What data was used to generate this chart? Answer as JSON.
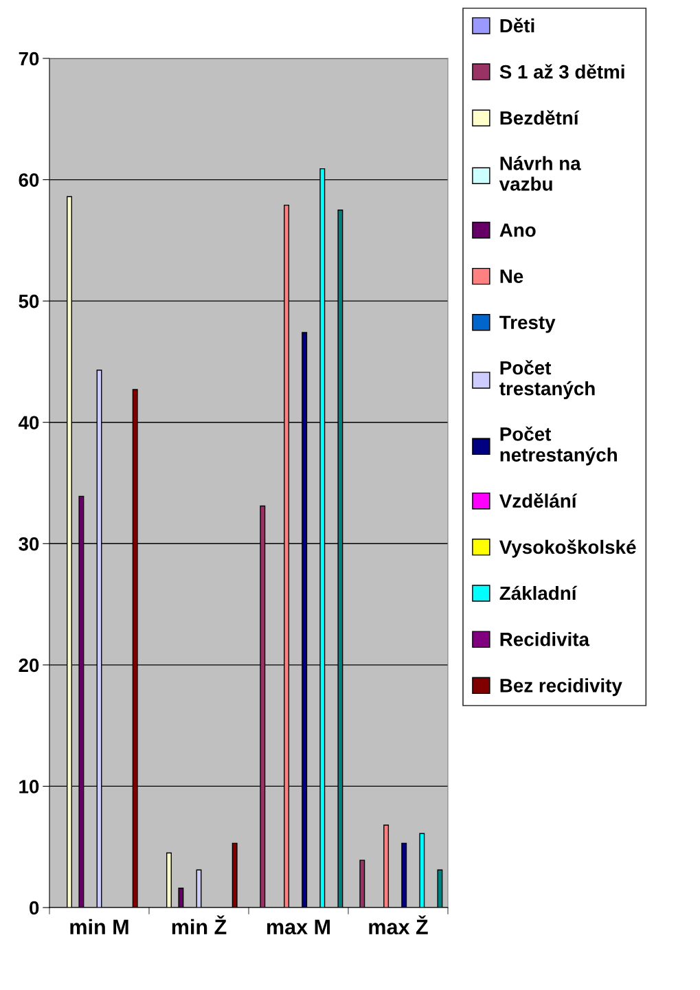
{
  "chart_data": {
    "type": "bar",
    "categories": [
      "min M",
      "min Ž",
      "max M",
      "max Ž"
    ],
    "series": [
      {
        "name": "Děti",
        "color": "#9999ff",
        "values": [
          null,
          null,
          null,
          null
        ]
      },
      {
        "name": "S 1 až 3 dětmi",
        "color": "#993366",
        "values": [
          null,
          null,
          33.1,
          3.9
        ]
      },
      {
        "name": "Bezdětní",
        "color": "#ffffcc",
        "values": [
          58.6,
          4.5,
          null,
          null
        ]
      },
      {
        "name": "Návrh na\nvazbu",
        "color": "#ccffff",
        "values": [
          null,
          null,
          null,
          null
        ]
      },
      {
        "name": "Ano",
        "color": "#660066",
        "values": [
          33.9,
          1.6,
          null,
          null
        ]
      },
      {
        "name": "Ne",
        "color": "#ff8080",
        "values": [
          null,
          null,
          57.9,
          6.8
        ]
      },
      {
        "name": "Tresty",
        "color": "#0066cc",
        "values": [
          null,
          null,
          null,
          null
        ]
      },
      {
        "name": "Počet\ntrestaných",
        "color": "#ccccff",
        "values": [
          44.3,
          3.1,
          null,
          null
        ]
      },
      {
        "name": "Počet\nnetrestaných",
        "color": "#000080",
        "values": [
          null,
          null,
          47.4,
          5.3
        ]
      },
      {
        "name": "Vzdělání",
        "color": "#ff00ff",
        "values": [
          null,
          null,
          null,
          null
        ]
      },
      {
        "name": "Vysokoškolské",
        "color": "#ffff00",
        "values": [
          null,
          null,
          null,
          null
        ]
      },
      {
        "name": "Základní",
        "color": "#00ffff",
        "values": [
          null,
          null,
          60.9,
          6.1
        ]
      },
      {
        "name": "Recidivita",
        "color": "#800080",
        "values": [
          null,
          null,
          null,
          null
        ]
      },
      {
        "name": "Bez recidivity",
        "color": "#800000",
        "values": [
          42.7,
          5.3,
          null,
          null
        ]
      },
      {
        "color": "#008080",
        "values": [
          null,
          null,
          57.5,
          3.1
        ]
      }
    ],
    "ylim": [
      0,
      70
    ],
    "yticks": [
      0,
      10,
      20,
      30,
      40,
      50,
      60,
      70
    ],
    "grid": "y",
    "legend": "right"
  }
}
